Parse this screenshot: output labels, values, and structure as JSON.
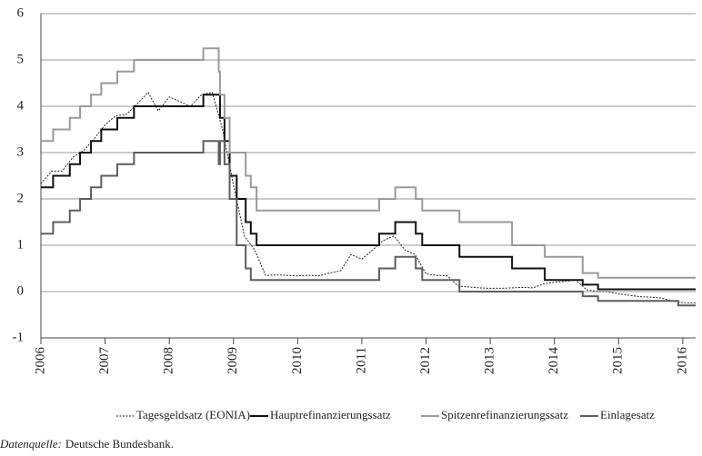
{
  "chart_data": {
    "type": "line",
    "xlim": [
      2006,
      2016.2
    ],
    "xticks": [
      2006,
      2007,
      2008,
      2009,
      2010,
      2011,
      2012,
      2013,
      2014,
      2015,
      2016
    ],
    "ylim": [
      -1,
      6
    ],
    "yticks": [
      -1,
      0,
      1,
      2,
      3,
      4,
      5,
      6
    ],
    "grid": true,
    "legend": "bottom",
    "series": [
      {
        "name": "Tagesgeldsatz (EONIA)",
        "color": "#222222",
        "dash": "dotted",
        "step": false,
        "x": [
          2006.0,
          2006.17,
          2006.33,
          2006.5,
          2006.67,
          2006.83,
          2007.0,
          2007.17,
          2007.33,
          2007.5,
          2007.67,
          2007.83,
          2008.0,
          2008.17,
          2008.33,
          2008.5,
          2008.67,
          2008.83,
          2009.0,
          2009.17,
          2009.33,
          2009.5,
          2009.67,
          2009.83,
          2010.0,
          2010.17,
          2010.33,
          2010.5,
          2010.67,
          2010.83,
          2011.0,
          2011.17,
          2011.33,
          2011.5,
          2011.67,
          2011.83,
          2012.0,
          2012.17,
          2012.33,
          2012.5,
          2012.67,
          2012.83,
          2013.0,
          2013.17,
          2013.33,
          2013.5,
          2013.67,
          2013.83,
          2014.0,
          2014.17,
          2014.33,
          2014.5,
          2014.67,
          2014.83,
          2015.0,
          2015.17,
          2015.33,
          2015.5,
          2015.67,
          2015.83,
          2016.0,
          2016.2
        ],
        "values": [
          2.33,
          2.6,
          2.6,
          2.9,
          3.05,
          3.3,
          3.6,
          3.8,
          3.82,
          4.05,
          4.3,
          3.9,
          4.2,
          4.1,
          4.0,
          4.25,
          4.3,
          3.5,
          2.3,
          1.2,
          0.9,
          0.35,
          0.36,
          0.35,
          0.34,
          0.35,
          0.34,
          0.4,
          0.45,
          0.8,
          0.7,
          0.9,
          1.1,
          1.2,
          0.9,
          0.8,
          0.38,
          0.35,
          0.34,
          0.12,
          0.1,
          0.08,
          0.07,
          0.07,
          0.08,
          0.09,
          0.08,
          0.17,
          0.2,
          0.22,
          0.25,
          0.04,
          0.0,
          0.0,
          -0.05,
          -0.08,
          -0.11,
          -0.12,
          -0.14,
          -0.2,
          -0.24,
          -0.25
        ]
      },
      {
        "name": "Hauptrefinanzierungssatz",
        "color": "#111111",
        "dash": "solid",
        "step": true,
        "x": [
          2006.0,
          2006.19,
          2006.45,
          2006.61,
          2006.78,
          2006.94,
          2007.19,
          2007.45,
          2008.53,
          2008.79,
          2008.86,
          2008.94,
          2009.05,
          2009.19,
          2009.27,
          2009.36,
          2011.27,
          2011.52,
          2011.84,
          2011.94,
          2012.52,
          2013.34,
          2013.85,
          2014.44,
          2014.68,
          2016.2
        ],
        "values": [
          2.25,
          2.5,
          2.75,
          3.0,
          3.25,
          3.5,
          3.75,
          4.0,
          4.25,
          3.75,
          3.25,
          2.5,
          2.0,
          1.5,
          1.25,
          1.0,
          1.25,
          1.5,
          1.25,
          1.0,
          0.75,
          0.5,
          0.25,
          0.15,
          0.05,
          0.05
        ]
      },
      {
        "name": "Spitzenrefinanzierungssatz",
        "color": "#9a9a9a",
        "dash": "solid",
        "step": true,
        "x": [
          2006.0,
          2006.19,
          2006.45,
          2006.61,
          2006.78,
          2006.94,
          2007.19,
          2007.45,
          2008.53,
          2008.77,
          2008.79,
          2008.86,
          2008.94,
          2009.19,
          2009.27,
          2009.36,
          2011.27,
          2011.52,
          2011.84,
          2011.94,
          2012.52,
          2013.34,
          2013.85,
          2014.44,
          2014.68,
          2016.2
        ],
        "values": [
          3.25,
          3.5,
          3.75,
          4.0,
          4.25,
          4.5,
          4.75,
          5.0,
          5.25,
          4.75,
          4.25,
          3.75,
          3.0,
          2.5,
          2.25,
          1.75,
          2.0,
          2.25,
          2.0,
          1.75,
          1.5,
          1.0,
          0.75,
          0.4,
          0.3,
          0.3
        ]
      },
      {
        "name": "Einlagesatz",
        "color": "#5e5e5e",
        "dash": "solid",
        "step": true,
        "x": [
          2006.0,
          2006.19,
          2006.45,
          2006.61,
          2006.78,
          2006.94,
          2007.19,
          2007.45,
          2008.53,
          2008.77,
          2008.79,
          2008.86,
          2008.94,
          2009.05,
          2009.19,
          2009.27,
          2011.27,
          2011.52,
          2011.84,
          2011.94,
          2012.52,
          2014.44,
          2014.68,
          2015.93,
          2016.2
        ],
        "values": [
          1.25,
          1.5,
          1.75,
          2.0,
          2.25,
          2.5,
          2.75,
          3.0,
          3.25,
          2.75,
          3.25,
          2.75,
          2.0,
          1.0,
          0.5,
          0.25,
          0.5,
          0.75,
          0.5,
          0.25,
          0.0,
          -0.1,
          -0.2,
          -0.3,
          -0.3
        ]
      }
    ],
    "source_label": "Datenquelle:",
    "source_text": "Deutsche Bundesbank."
  }
}
